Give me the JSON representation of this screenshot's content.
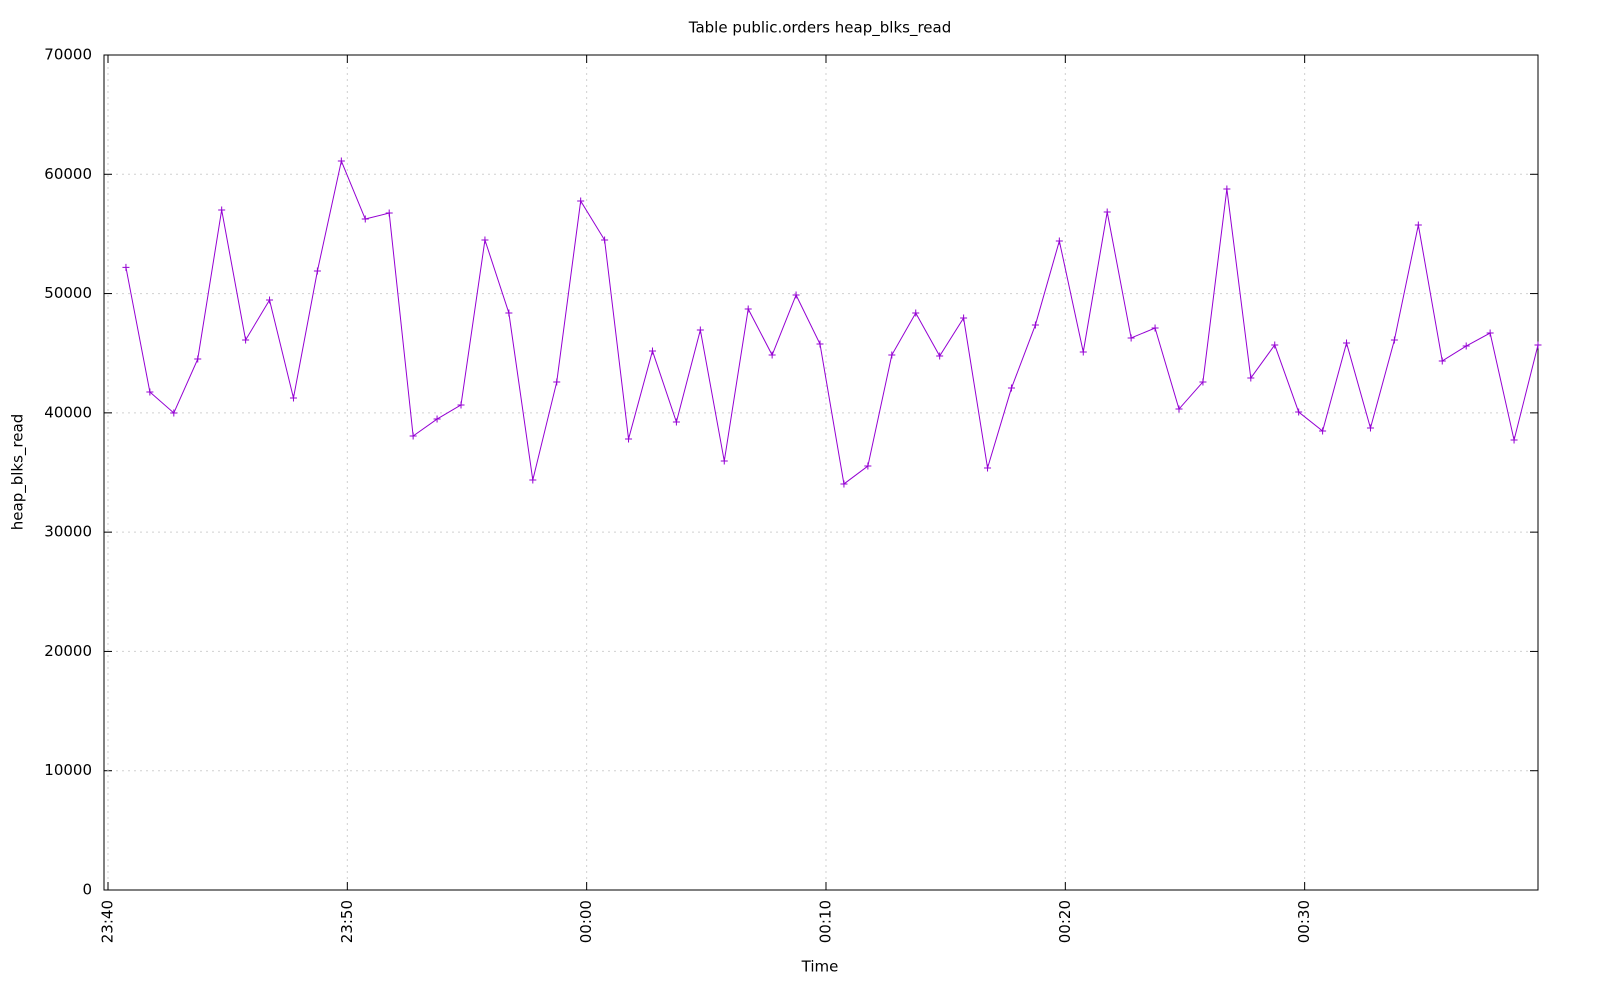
{
  "chart_data": {
    "type": "line",
    "title": "Table public.orders heap_blks_read",
    "x_label": "Time",
    "y_label": "heap_blks_read",
    "x": [
      "23:40:45",
      "23:41:45",
      "23:42:45",
      "23:43:45",
      "23:44:45",
      "23:45:45",
      "23:46:45",
      "23:47:45",
      "23:48:45",
      "23:49:45",
      "23:50:45",
      "23:51:45",
      "23:52:45",
      "23:53:45",
      "23:54:45",
      "23:55:45",
      "23:56:45",
      "23:57:45",
      "23:58:45",
      "23:59:45",
      "00:00:45",
      "00:01:45",
      "00:02:45",
      "00:03:45",
      "00:04:45",
      "00:05:45",
      "00:06:45",
      "00:07:45",
      "00:08:45",
      "00:09:45",
      "00:10:45",
      "00:11:45",
      "00:12:45",
      "00:13:45",
      "00:14:45",
      "00:15:45",
      "00:16:45",
      "00:17:45",
      "00:18:45",
      "00:19:45",
      "00:20:45",
      "00:21:45",
      "00:22:45",
      "00:23:45",
      "00:24:45",
      "00:25:45",
      "00:26:45",
      "00:27:45",
      "00:28:45",
      "00:29:45",
      "00:30:45",
      "00:31:45",
      "00:32:45",
      "00:33:45",
      "00:34:45",
      "00:35:45",
      "00:36:45",
      "00:37:45",
      "00:38:45",
      "00:39:45"
    ],
    "values": [
      52200,
      41750,
      39990,
      44510,
      57010,
      46110,
      49460,
      41250,
      51890,
      61110,
      56250,
      56750,
      38060,
      39480,
      40660,
      54490,
      48370,
      34370,
      42590,
      57760,
      54490,
      37810,
      45190,
      39230,
      46950,
      35960,
      48710,
      44850,
      49880,
      45770,
      34040,
      35540,
      44850,
      48370,
      44770,
      47950,
      35380,
      42080,
      47370,
      54410,
      45100,
      56840,
      46280,
      47110,
      40320,
      42590,
      58770,
      42920,
      45690,
      40070,
      38480,
      45860,
      38730,
      46110,
      55750,
      44350,
      45600,
      46690,
      37720,
      45690
    ],
    "color": "#9400d3",
    "xlim": [
      "23:39:50",
      "00:39:45"
    ],
    "xticks": [
      "23:40",
      "23:50",
      "00:00",
      "00:10",
      "00:20",
      "00:30"
    ],
    "ylim": [
      0,
      70000
    ],
    "yticks": [
      0,
      10000,
      20000,
      30000,
      40000,
      50000,
      60000,
      70000
    ],
    "grid": true
  }
}
